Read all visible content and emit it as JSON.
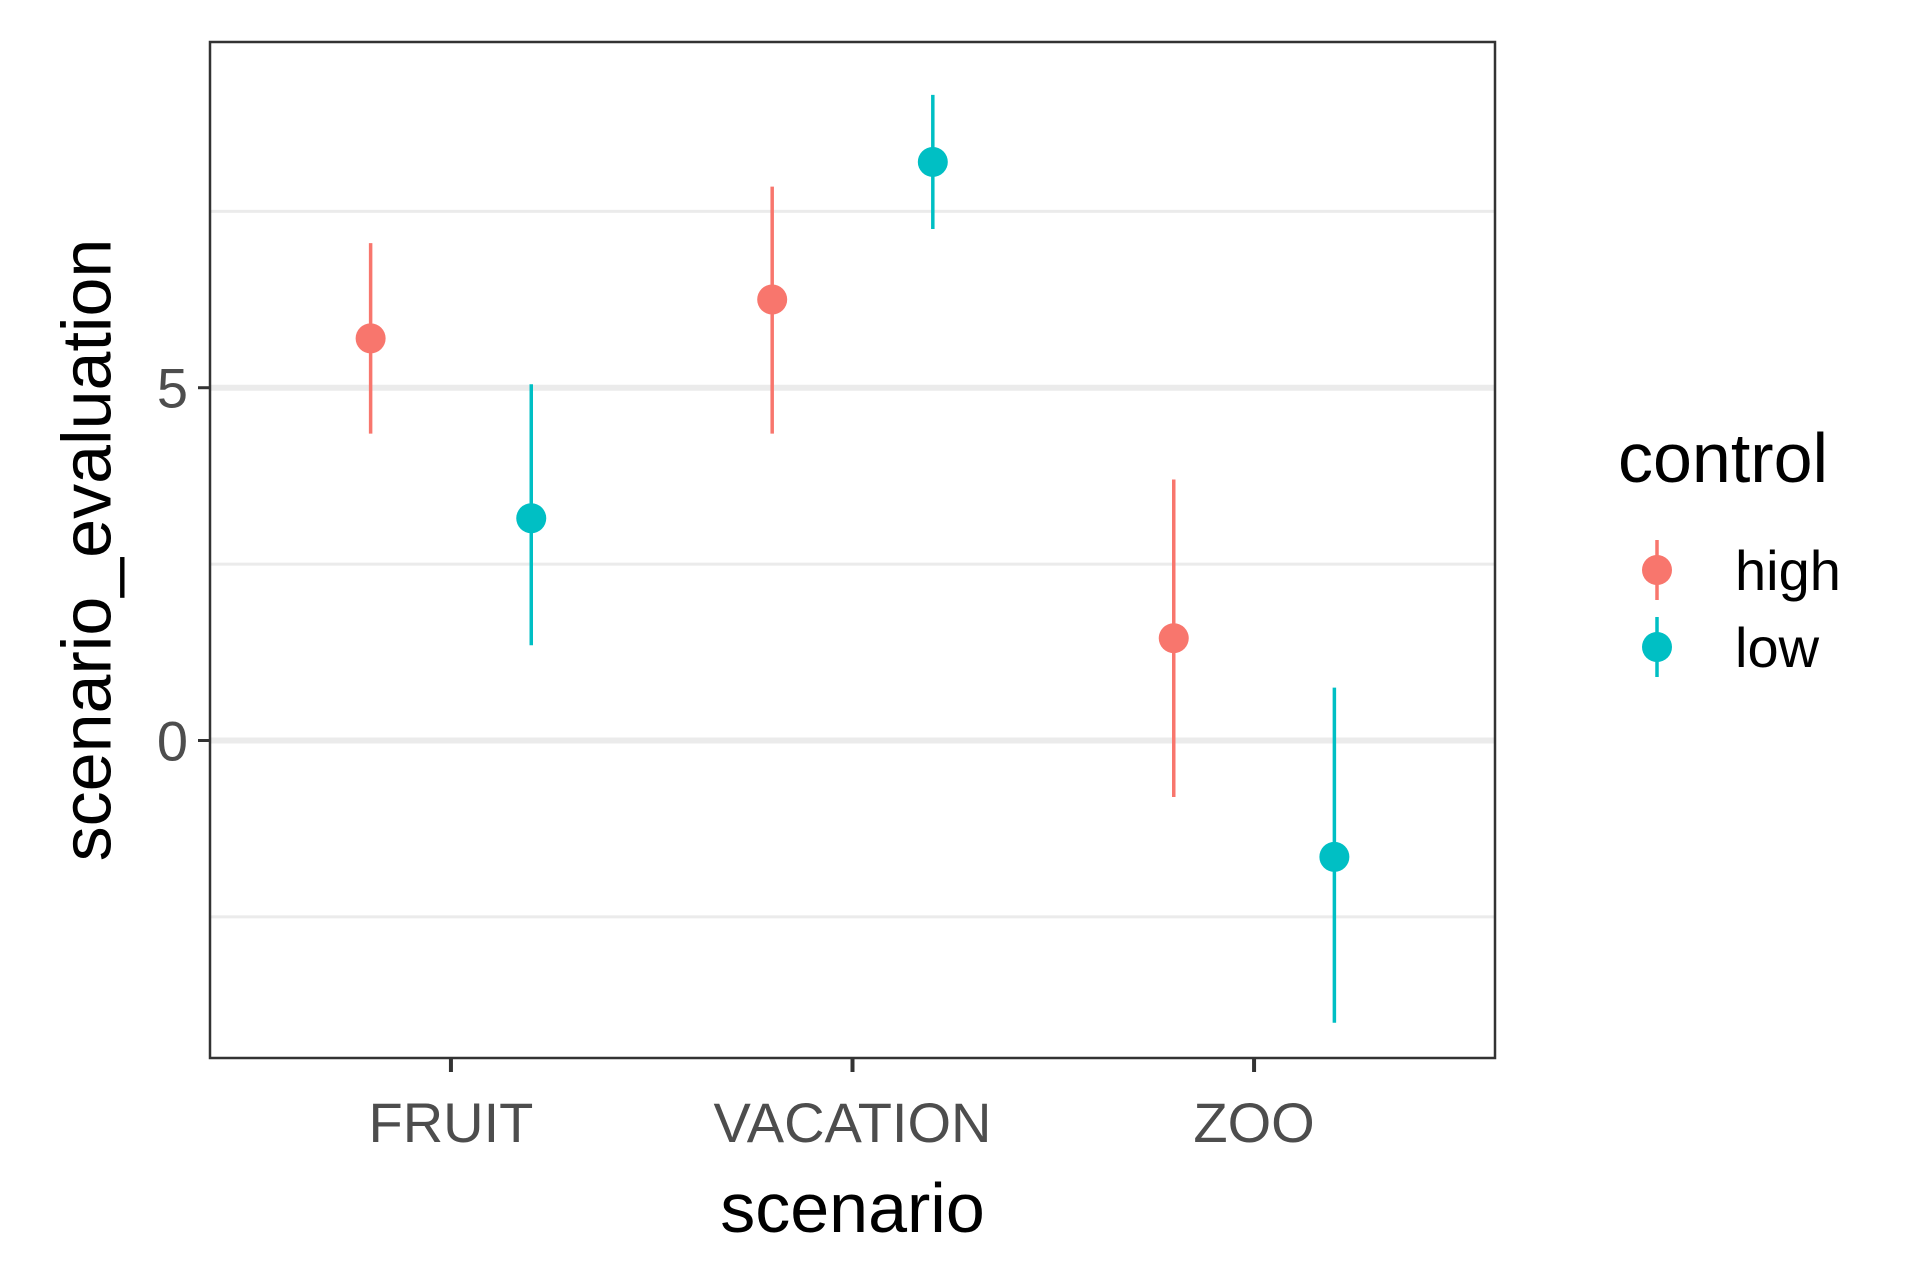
{
  "chart_data": {
    "type": "scatter",
    "subtype": "pointrange",
    "categories": [
      "FRUIT",
      "VACATION",
      "ZOO"
    ],
    "xlabel": "scenario",
    "ylabel": "scenario_evaluation",
    "ylim": [
      -4.5,
      9.9
    ],
    "yticks": [
      0,
      5
    ],
    "ytick_labels": [
      "0",
      "5"
    ],
    "minor_gridlines_y": [
      -2.5,
      2.5,
      7.5
    ],
    "grid": true,
    "legend": {
      "title": "control",
      "position": "right"
    },
    "series": [
      {
        "name": "high",
        "color": "#F8766D",
        "values": [
          5.7,
          6.25,
          1.45
        ],
        "lower": [
          4.35,
          4.35,
          -0.8
        ],
        "upper": [
          7.05,
          7.85,
          3.7
        ]
      },
      {
        "name": "low",
        "color": "#00BFC4",
        "values": [
          3.15,
          8.2,
          -1.65
        ],
        "lower": [
          1.35,
          7.25,
          -4.0
        ],
        "upper": [
          5.05,
          9.15,
          0.75
        ]
      }
    ]
  }
}
